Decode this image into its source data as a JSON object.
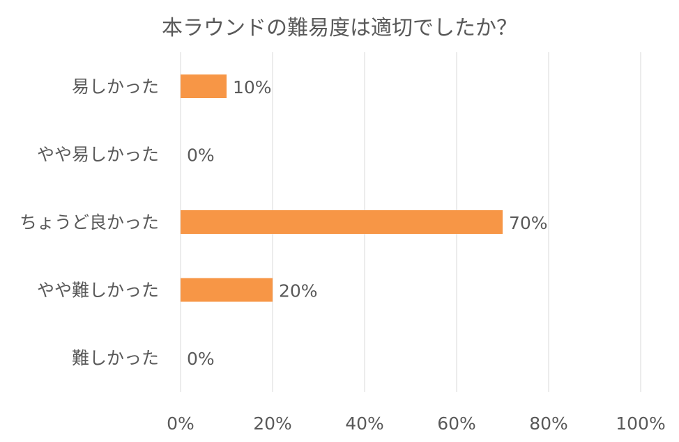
{
  "chart_data": {
    "type": "bar",
    "orientation": "horizontal",
    "title": "本ラウンドの難易度は適切でしたか？",
    "categories": [
      "易しかった",
      "やや易しかった",
      "ちょうど良かった",
      "やや難しかった",
      "難しかった"
    ],
    "values": [
      10,
      0,
      70,
      20,
      0
    ],
    "data_labels": [
      "10%",
      "0%",
      "70%",
      "20%",
      "0%"
    ],
    "xlim": [
      0,
      100
    ],
    "x_ticks": [
      0,
      20,
      40,
      60,
      80,
      100
    ],
    "x_tick_labels": [
      "0%",
      "20%",
      "40%",
      "60%",
      "80%",
      "100%"
    ],
    "grid": true,
    "legend": "none",
    "bar_color": "#f79646",
    "text_color": "#595959",
    "grid_color": "#d9d9d9"
  }
}
